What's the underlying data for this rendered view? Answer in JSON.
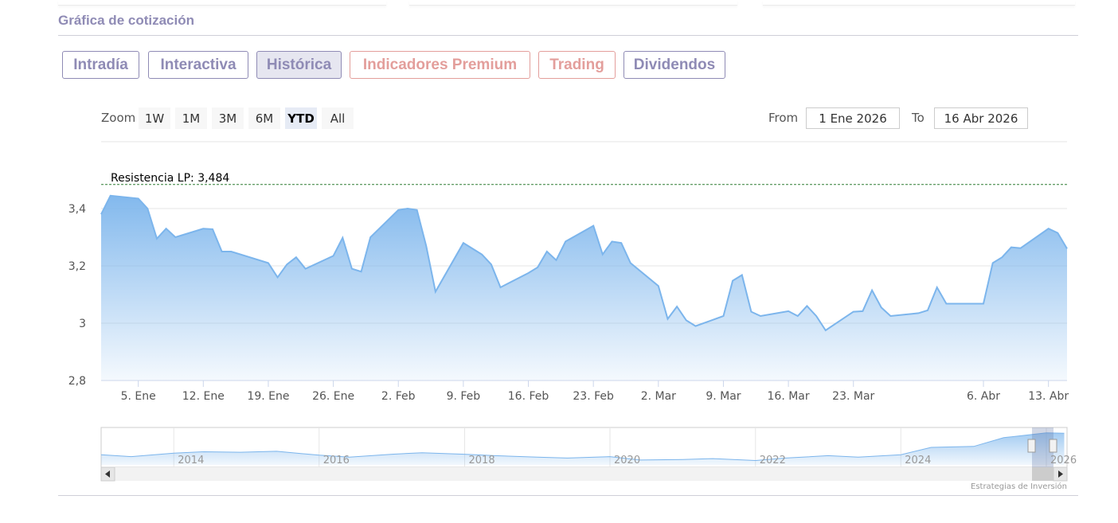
{
  "section_title": "Gráfica de cotización",
  "tabs": [
    {
      "label": "Intradía",
      "color": "#8f8bb5",
      "active": false
    },
    {
      "label": "Interactiva",
      "color": "#8f8bb5",
      "active": false
    },
    {
      "label": "Histórica",
      "color": "#8f8bb5",
      "active": true
    },
    {
      "label": "Indicadores Premium",
      "color": "#e39e9b",
      "active": false
    },
    {
      "label": "Trading",
      "color": "#e39e9b",
      "active": false
    },
    {
      "label": "Dividendos",
      "color": "#8f8bb5",
      "active": false
    }
  ],
  "zoom": {
    "label": "Zoom",
    "options": [
      "1W",
      "1M",
      "3M",
      "6M",
      "YTD",
      "All"
    ],
    "selected": "YTD"
  },
  "range": {
    "from_label": "From",
    "from_value": "1 Ene 2026",
    "to_label": "To",
    "to_value": "16 Abr 2026"
  },
  "chart_data": {
    "type": "area",
    "title": "",
    "xlabel": "",
    "ylabel": "",
    "ylim": [
      2.8,
      3.5
    ],
    "y_ticks": [
      2.8,
      3,
      3.2,
      3.4
    ],
    "y_tick_labels": [
      "2,8",
      "3",
      "3,2",
      "3,4"
    ],
    "x_tick_labels": [
      {
        "date": "2026-01-05",
        "label": "5. Ene"
      },
      {
        "date": "2026-01-12",
        "label": "12. Ene"
      },
      {
        "date": "2026-01-19",
        "label": "19. Ene"
      },
      {
        "date": "2026-01-26",
        "label": "26. Ene"
      },
      {
        "date": "2026-02-02",
        "label": "2. Feb"
      },
      {
        "date": "2026-02-09",
        "label": "9. Feb"
      },
      {
        "date": "2026-02-16",
        "label": "16. Feb"
      },
      {
        "date": "2026-02-23",
        "label": "23. Feb"
      },
      {
        "date": "2026-03-02",
        "label": "2. Mar"
      },
      {
        "date": "2026-03-09",
        "label": "9. Mar"
      },
      {
        "date": "2026-03-16",
        "label": "16. Mar"
      },
      {
        "date": "2026-03-23",
        "label": "23. Mar"
      },
      {
        "date": "2026-04-06",
        "label": "6. Abr"
      },
      {
        "date": "2026-04-13",
        "label": "13. Abr"
      }
    ],
    "grid": true,
    "color": "#7cb5ec",
    "resistance": {
      "label": "Resistencia LP: 3,484",
      "value": 3.484,
      "color": "#2e7d32"
    },
    "series": [
      {
        "values": [
          [
            "2026-01-01",
            3.38
          ],
          [
            "2026-01-02",
            3.445
          ],
          [
            "2026-01-05",
            3.435
          ],
          [
            "2026-01-06",
            3.4
          ],
          [
            "2026-01-07",
            3.295
          ],
          [
            "2026-01-08",
            3.33
          ],
          [
            "2026-01-09",
            3.3
          ],
          [
            "2026-01-12",
            3.33
          ],
          [
            "2026-01-13",
            3.328
          ],
          [
            "2026-01-14",
            3.25
          ],
          [
            "2026-01-15",
            3.25
          ],
          [
            "2026-01-16",
            3.24
          ],
          [
            "2026-01-19",
            3.21
          ],
          [
            "2026-01-20",
            3.16
          ],
          [
            "2026-01-21",
            3.205
          ],
          [
            "2026-01-22",
            3.23
          ],
          [
            "2026-01-23",
            3.19
          ],
          [
            "2026-01-26",
            3.235
          ],
          [
            "2026-01-27",
            3.298
          ],
          [
            "2026-01-28",
            3.19
          ],
          [
            "2026-01-29",
            3.18
          ],
          [
            "2026-01-30",
            3.3
          ],
          [
            "2026-02-02",
            3.395
          ],
          [
            "2026-02-03",
            3.4
          ],
          [
            "2026-02-04",
            3.395
          ],
          [
            "2026-02-05",
            3.27
          ],
          [
            "2026-02-06",
            3.11
          ],
          [
            "2026-02-09",
            3.28
          ],
          [
            "2026-02-10",
            3.26
          ],
          [
            "2026-02-11",
            3.24
          ],
          [
            "2026-02-12",
            3.205
          ],
          [
            "2026-02-13",
            3.125
          ],
          [
            "2026-02-16",
            3.175
          ],
          [
            "2026-02-17",
            3.195
          ],
          [
            "2026-02-18",
            3.25
          ],
          [
            "2026-02-19",
            3.22
          ],
          [
            "2026-02-20",
            3.285
          ],
          [
            "2026-02-23",
            3.34
          ],
          [
            "2026-02-24",
            3.24
          ],
          [
            "2026-02-25",
            3.285
          ],
          [
            "2026-02-26",
            3.28
          ],
          [
            "2026-02-27",
            3.21
          ],
          [
            "2026-03-02",
            3.13
          ],
          [
            "2026-03-03",
            3.015
          ],
          [
            "2026-03-04",
            3.058
          ],
          [
            "2026-03-05",
            3.01
          ],
          [
            "2026-03-06",
            2.99
          ],
          [
            "2026-03-09",
            3.025
          ],
          [
            "2026-03-10",
            3.148
          ],
          [
            "2026-03-11",
            3.168
          ],
          [
            "2026-03-12",
            3.04
          ],
          [
            "2026-03-13",
            3.025
          ],
          [
            "2026-03-16",
            3.042
          ],
          [
            "2026-03-17",
            3.025
          ],
          [
            "2026-03-18",
            3.06
          ],
          [
            "2026-03-19",
            3.025
          ],
          [
            "2026-03-20",
            2.975
          ],
          [
            "2026-03-23",
            3.04
          ],
          [
            "2026-03-24",
            3.042
          ],
          [
            "2026-03-25",
            3.115
          ],
          [
            "2026-03-26",
            3.055
          ],
          [
            "2026-03-27",
            3.025
          ],
          [
            "2026-03-30",
            3.035
          ],
          [
            "2026-03-31",
            3.045
          ],
          [
            "2026-04-01",
            3.125
          ],
          [
            "2026-04-02",
            3.068
          ],
          [
            "2026-04-06",
            3.068
          ],
          [
            "2026-04-07",
            3.21
          ],
          [
            "2026-04-08",
            3.23
          ],
          [
            "2026-04-09",
            3.265
          ],
          [
            "2026-04-10",
            3.262
          ],
          [
            "2026-04-13",
            3.33
          ],
          [
            "2026-04-14",
            3.315
          ],
          [
            "2026-04-15",
            3.26
          ]
        ]
      }
    ],
    "navigator": {
      "year_labels": [
        "2014",
        "2016",
        "2018",
        "2020",
        "2022",
        "2024",
        "2026"
      ],
      "values": [
        [
          "2013-01",
          1.05
        ],
        [
          "2013-06",
          0.85
        ],
        [
          "2014-01",
          1.2
        ],
        [
          "2014-06",
          1.35
        ],
        [
          "2014-12",
          1.3
        ],
        [
          "2015-06",
          1.4
        ],
        [
          "2016-01",
          1.0
        ],
        [
          "2016-06",
          0.8
        ],
        [
          "2017-01",
          1.1
        ],
        [
          "2017-06",
          1.25
        ],
        [
          "2018-01",
          1.1
        ],
        [
          "2018-06",
          0.95
        ],
        [
          "2019-01",
          0.8
        ],
        [
          "2019-06",
          0.7
        ],
        [
          "2020-01",
          0.85
        ],
        [
          "2020-06",
          0.5
        ],
        [
          "2021-01",
          0.55
        ],
        [
          "2021-06",
          0.65
        ],
        [
          "2022-01",
          0.45
        ],
        [
          "2022-06",
          0.7
        ],
        [
          "2023-01",
          0.95
        ],
        [
          "2023-06",
          0.8
        ],
        [
          "2024-01",
          1.05
        ],
        [
          "2024-06",
          1.8
        ],
        [
          "2025-01",
          1.9
        ],
        [
          "2025-06",
          2.8
        ],
        [
          "2026-01",
          3.3
        ],
        [
          "2026-04",
          3.26
        ]
      ]
    }
  },
  "credit": "Estrategias de Inversión"
}
